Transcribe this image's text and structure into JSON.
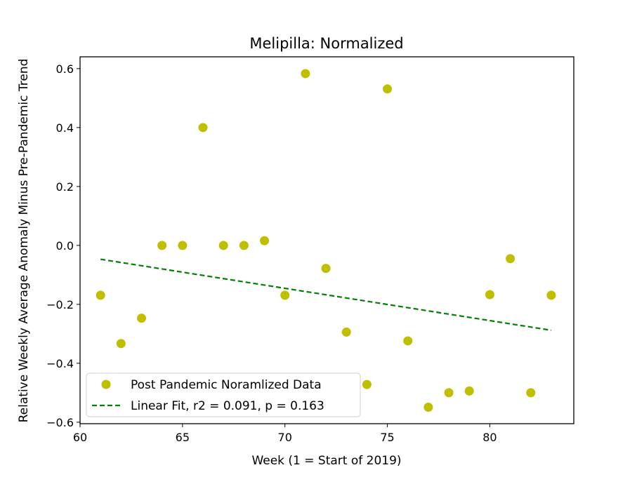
{
  "chart_data": {
    "type": "scatter",
    "title": "Melipilla: Normalized",
    "xlabel": "Week (1 = Start of 2019)",
    "ylabel": "Relative Weekly Average Anomaly Minus Pre-Pandemic Trend",
    "xlim": [
      60,
      84.1
    ],
    "ylim": [
      -0.605,
      0.64
    ],
    "xticks": [
      60,
      65,
      70,
      75,
      80
    ],
    "yticks": [
      -0.6,
      -0.4,
      -0.2,
      0.0,
      0.2,
      0.4,
      0.6
    ],
    "ytick_labels": [
      "−0.6",
      "−0.4",
      "−0.2",
      "0.0",
      "0.2",
      "0.4",
      "0.6"
    ],
    "grid": false,
    "legend_position": "lower left",
    "series": [
      {
        "name": "Post Pandemic Noramlized Data",
        "kind": "scatter",
        "color": "#bfbf00",
        "x": [
          61,
          62,
          63,
          64,
          65,
          66,
          67,
          68,
          69,
          70,
          71,
          72,
          73,
          74,
          75,
          76,
          77,
          78,
          79,
          80,
          81,
          82,
          83
        ],
        "y": [
          -0.169,
          -0.333,
          -0.247,
          0.0,
          0.0,
          0.4,
          0.0,
          0.0,
          0.016,
          -0.169,
          0.583,
          -0.078,
          -0.294,
          -0.472,
          0.531,
          -0.324,
          -0.549,
          -0.5,
          -0.494,
          -0.167,
          -0.045,
          -0.5,
          -0.169
        ]
      },
      {
        "name": "Linear Fit, r2 = 0.091, p = 0.163",
        "kind": "line",
        "style": "dashed",
        "color": "#007f00",
        "x": [
          61,
          83
        ],
        "y": [
          -0.047,
          -0.288
        ]
      }
    ]
  }
}
